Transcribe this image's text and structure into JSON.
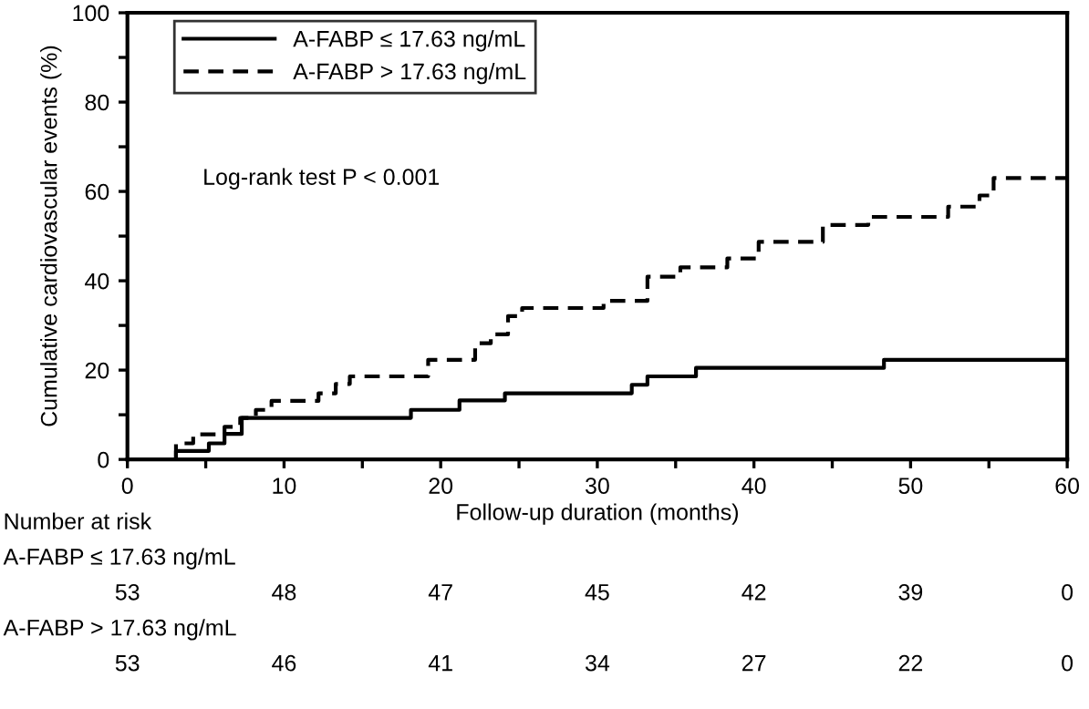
{
  "chart_data": {
    "type": "step",
    "xlabel": "Follow-up duration (months)",
    "ylabel": "Cumulative cardiovascular events (%)",
    "series": [
      {
        "name": "A-FABP ≤ 17.63 ng/mL",
        "color": "#000000",
        "line_style": "solid",
        "x": [
          3.1,
          3.1,
          5.2,
          6.2,
          7.3,
          18.1,
          21.2,
          24.1,
          32.2,
          33.2,
          36.3,
          48.3,
          60
        ],
        "values": [
          0,
          1.9,
          3.6,
          5.7,
          9.3,
          11.1,
          13.2,
          14.8,
          16.7,
          18.6,
          20.5,
          22.3,
          22.3
        ]
      },
      {
        "name": "A-FABP > 17.63 ng/mL",
        "color": "#000000",
        "line_style": "dashed",
        "x": [
          3.1,
          3.1,
          4.2,
          6.2,
          7.2,
          8.2,
          9.2,
          12.2,
          13.3,
          14.2,
          19.2,
          22.2,
          23.2,
          24.3,
          25.2,
          30.4,
          33.2,
          35.3,
          38.3,
          40.3,
          44.4,
          47.3,
          52.4,
          54.4,
          55.3,
          60
        ],
        "values": [
          0,
          3.6,
          5.6,
          7.3,
          9.3,
          11.1,
          13.1,
          14.8,
          16.9,
          18.6,
          22.3,
          26,
          28,
          32.1,
          33.9,
          35.5,
          40.9,
          43,
          45,
          48.7,
          52.5,
          54.3,
          56.6,
          59.1,
          63,
          63
        ]
      }
    ],
    "xlim": [
      0,
      60
    ],
    "xticks": [
      0,
      {
        "value": 5,
        "label": null
      },
      10,
      {
        "value": 15,
        "label": null
      },
      20,
      {
        "value": 25,
        "label": null
      },
      30,
      {
        "value": 35,
        "label": null
      },
      40,
      {
        "value": 45,
        "label": null
      },
      50,
      {
        "value": 55,
        "label": null
      },
      60
    ],
    "ylim": [
      0,
      100
    ],
    "yticks": [
      0,
      {
        "value": 10,
        "label": null
      },
      20,
      {
        "value": 30,
        "label": null
      },
      40,
      {
        "value": 50,
        "label": null
      },
      60,
      {
        "value": 70,
        "label": null
      },
      80,
      {
        "value": 90,
        "label": null
      },
      100
    ],
    "grid": false,
    "legend": "top left",
    "marker": "none",
    "annotations": [
      "Log-rank test P < 0.001",
      "Number at risk",
      "A-FABP ≤ 17.63 ng/mL",
      "53",
      "48",
      "47",
      "45",
      "42",
      "39",
      "0",
      "A-FABP > 17.63 ng/mL",
      "53",
      "46",
      "41",
      "34",
      "27",
      "22",
      "0"
    ]
  }
}
